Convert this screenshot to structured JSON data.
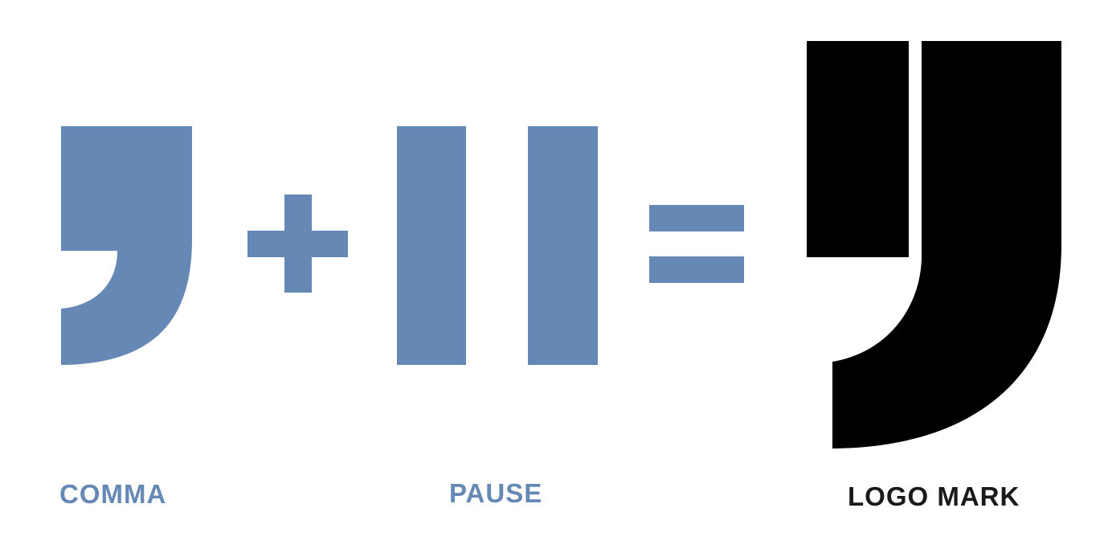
{
  "labels": {
    "comma": "COMMA",
    "pause": "PAUSE",
    "logo_mark": "LOGO MARK"
  },
  "icons": {
    "comma": "comma-shape-icon",
    "plus": "plus-icon",
    "pause": "pause-icon",
    "equals": "equals-icon",
    "logo_mark": "logo-mark-icon"
  },
  "colors": {
    "component": "#6589b4",
    "logo": "#000000",
    "logo_label": "#1a1a1a",
    "background": "#ffffff"
  }
}
